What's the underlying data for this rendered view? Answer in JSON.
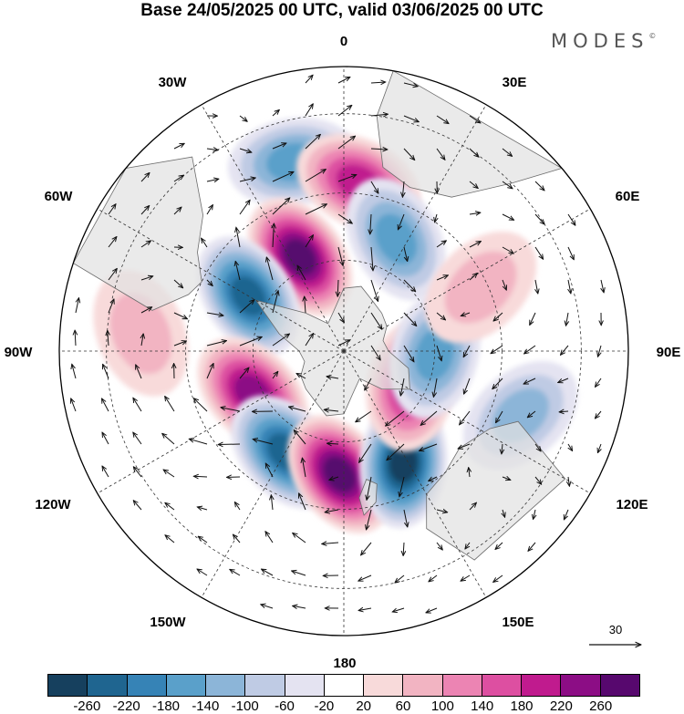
{
  "title": "Base 24/05/2025 00 UTC, valid 03/06/2025 00 UTC",
  "brand": "MODES",
  "brand_mark": "©",
  "longitude_labels": {
    "lon_0": "0",
    "lon_30e": "30E",
    "lon_60e": "60E",
    "lon_90e": "90E",
    "lon_120e": "120E",
    "lon_150e": "150E",
    "lon_180": "180",
    "lon_150w": "150W",
    "lon_120w": "120W",
    "lon_90w": "90W",
    "lon_60w": "60W",
    "lon_30w": "30W"
  },
  "reference_vector": "30",
  "colorbar": {
    "colors": [
      "#16405e",
      "#1f6590",
      "#3683b6",
      "#5aa0ca",
      "#8cb5d8",
      "#bfcbe4",
      "#e4e3f1",
      "#ffffff",
      "#f8dada",
      "#f2b4c2",
      "#ec84b3",
      "#dd4fa1",
      "#c01b8e",
      "#8c0d85",
      "#57086e"
    ],
    "ticks": [
      "-260",
      "-220",
      "-180",
      "-140",
      "-100",
      "-60",
      "-20",
      "20",
      "60",
      "100",
      "140",
      "180",
      "220",
      "260"
    ]
  },
  "map": {
    "projection": "south polar stereographic",
    "colors": {
      "land": "#e2e2e2",
      "coast": "#6c6c6c",
      "grid": "#333333",
      "arrow": "#111111"
    },
    "anomalies": [
      {
        "lon": -15,
        "colat": 60,
        "value": -120
      },
      {
        "lon": 5,
        "colat": 53,
        "value": 150
      },
      {
        "lon": 25,
        "colat": 40,
        "value": -140
      },
      {
        "lon": -25,
        "colat": 34,
        "value": 230
      },
      {
        "lon": -60,
        "colat": 36,
        "value": -200
      },
      {
        "lon": -115,
        "colat": 33,
        "value": 200
      },
      {
        "lon": -150,
        "colat": 38,
        "value": -210
      },
      {
        "lon": -178,
        "colat": 40,
        "value": 240
      },
      {
        "lon": 152,
        "colat": 41,
        "value": -230
      },
      {
        "lon": 118,
        "colat": 25,
        "value": 170
      },
      {
        "lon": 92,
        "colat": 30,
        "value": -130
      },
      {
        "lon": 110,
        "colat": 58,
        "value": -80
      },
      {
        "lon": 65,
        "colat": 48,
        "value": 60
      },
      {
        "lon": -85,
        "colat": 62,
        "value": 60
      }
    ]
  }
}
